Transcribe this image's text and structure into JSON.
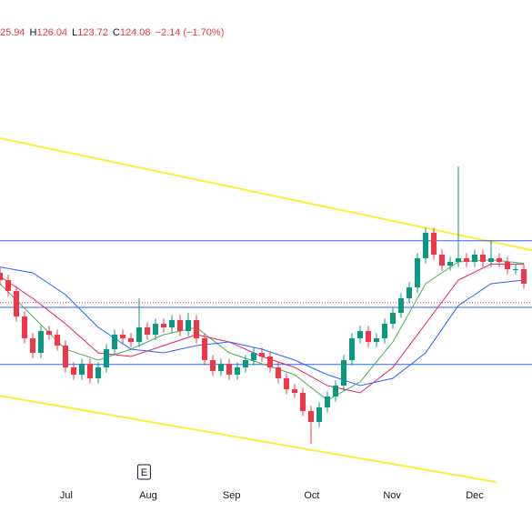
{
  "header": {
    "ohlc": [
      "25.94",
      "H",
      "126.04",
      "L",
      "123.72",
      "C",
      "124.08",
      "−2.14 (−1.70%)"
    ]
  },
  "chart_data": {
    "type": "candlestick",
    "xlim": [
      0,
      65
    ],
    "ylim": [
      93,
      158
    ],
    "xticks": [
      {
        "value": 8.1,
        "label": "Jul"
      },
      {
        "value": 18.1,
        "label": "Aug"
      },
      {
        "value": 28.3,
        "label": "Sep"
      },
      {
        "value": 38.1,
        "label": "Oct"
      },
      {
        "value": 47.9,
        "label": "Nov"
      },
      {
        "value": 58,
        "label": "Dec"
      }
    ],
    "up_color": "#089981",
    "down_color": "#f23645",
    "open": [
      123,
      122,
      120.5,
      117,
      114,
      112,
      115,
      114.5,
      113,
      110,
      109,
      110.5,
      108.5,
      110,
      112.5,
      114.5,
      114,
      113.5,
      115.5,
      114.5,
      116,
      115.5,
      116.5,
      115,
      116.5,
      114,
      111,
      109.5,
      110.5,
      109,
      110,
      111,
      112,
      111.5,
      110,
      108.5,
      107,
      106.5,
      104,
      102.5,
      104.5,
      106,
      107.5,
      111,
      114,
      115,
      113.5,
      114,
      116,
      117.5,
      119.5,
      121,
      125,
      128.5,
      125.5,
      124,
      124.5,
      125,
      124.5,
      125.5,
      124.5,
      125,
      124.5,
      123.5,
      123.5
    ],
    "high": [
      123.7,
      122.7,
      121.2,
      117.7,
      114.7,
      115.7,
      115.7,
      115.2,
      113.7,
      110.7,
      111.2,
      111.2,
      110.7,
      113.2,
      115.2,
      115.2,
      114.7,
      119.5,
      116.2,
      116.7,
      116.7,
      117.2,
      117.2,
      117.5,
      117.2,
      114.7,
      111.7,
      111.2,
      111.2,
      110.7,
      111.7,
      112.7,
      112.7,
      112.2,
      110.7,
      109.2,
      107.7,
      107.2,
      104.7,
      105.2,
      106.7,
      108.2,
      111.7,
      114.7,
      115.7,
      115.7,
      114.7,
      116.7,
      118.2,
      120.2,
      121.7,
      125.7,
      129.2,
      129.2,
      126.2,
      125.2,
      137.6,
      125.7,
      126.2,
      126.2,
      127.5,
      125.7,
      125.2,
      124.2,
      124.2
    ],
    "low": [
      121.3,
      119.8,
      116.3,
      113.3,
      111.3,
      111.3,
      113.8,
      112.3,
      109.3,
      108.3,
      108.3,
      107.8,
      107.8,
      109.3,
      111.8,
      113.3,
      112.8,
      112.8,
      113.8,
      113.8,
      114.8,
      114.8,
      114.3,
      114.3,
      113.3,
      110.3,
      108.8,
      108.8,
      108.3,
      108.3,
      109.3,
      110.3,
      110.8,
      109.3,
      107.8,
      106.3,
      105.8,
      103.3,
      99.5,
      101.8,
      103.8,
      105.3,
      106.8,
      110.3,
      113.3,
      112.8,
      112.8,
      113.3,
      115.3,
      116.8,
      118.8,
      120.3,
      124.3,
      124.8,
      123.3,
      123.3,
      123.8,
      123.8,
      123.8,
      123.8,
      123.8,
      123.8,
      122.8,
      122.8,
      120.8
    ],
    "close": [
      122,
      120.5,
      117,
      114,
      112,
      115,
      114.5,
      113,
      110,
      109,
      110.5,
      108.5,
      110,
      112.5,
      114.5,
      114,
      113.5,
      115.5,
      114.5,
      116,
      115.5,
      116.5,
      115,
      116.5,
      114,
      111,
      109.5,
      110.5,
      109,
      110,
      111,
      112,
      111.5,
      110,
      108.5,
      107,
      106.5,
      104,
      102.5,
      104.5,
      106,
      107.5,
      111,
      114,
      115,
      113.5,
      114,
      116,
      117.5,
      119.5,
      121,
      125,
      128.5,
      125.5,
      124,
      124.5,
      125,
      124.5,
      125.5,
      124.5,
      125,
      124.5,
      123.5,
      123.5,
      121.5
    ],
    "ma_x": [
      0,
      4,
      8,
      12,
      16,
      20,
      24,
      28,
      32,
      36,
      40,
      44,
      48,
      52,
      56,
      60,
      64
    ],
    "series": [
      {
        "color": "#4caf50",
        "values": [
          121.5,
          117,
          112.5,
          111,
          112.5,
          114.5,
          115.5,
          112,
          110.5,
          109,
          105.5,
          108,
          113.5,
          121.5,
          124.5,
          124.8,
          124.3
        ]
      },
      {
        "color": "#e91e63",
        "values": [
          122.5,
          119.5,
          116,
          112,
          111.5,
          113,
          114.5,
          113.5,
          111.5,
          110,
          107.5,
          106.5,
          110,
          116,
          122,
          124.2,
          124.2
        ]
      },
      {
        "color": "#2962ff",
        "values": [
          123.8,
          123,
          120,
          115.5,
          112.5,
          112,
          113,
          113.5,
          112.5,
          111,
          109,
          107.5,
          108.5,
          112,
          118.5,
          121.5,
          122
        ]
      }
    ],
    "levels": [
      127.4,
      118.25,
      110.4
    ],
    "level_color": "#2962ff",
    "price_line": 118.9,
    "trendlines": [
      {
        "color": "#ffeb3b",
        "x": [
          0,
          65
        ],
        "y": [
          141.5,
          126.1
        ]
      },
      {
        "color": "#ffeb3b",
        "x": [
          0,
          60.6
        ],
        "y": [
          106.1,
          94.25
        ]
      }
    ],
    "marker": {
      "label": "E",
      "x": 17.6
    }
  }
}
